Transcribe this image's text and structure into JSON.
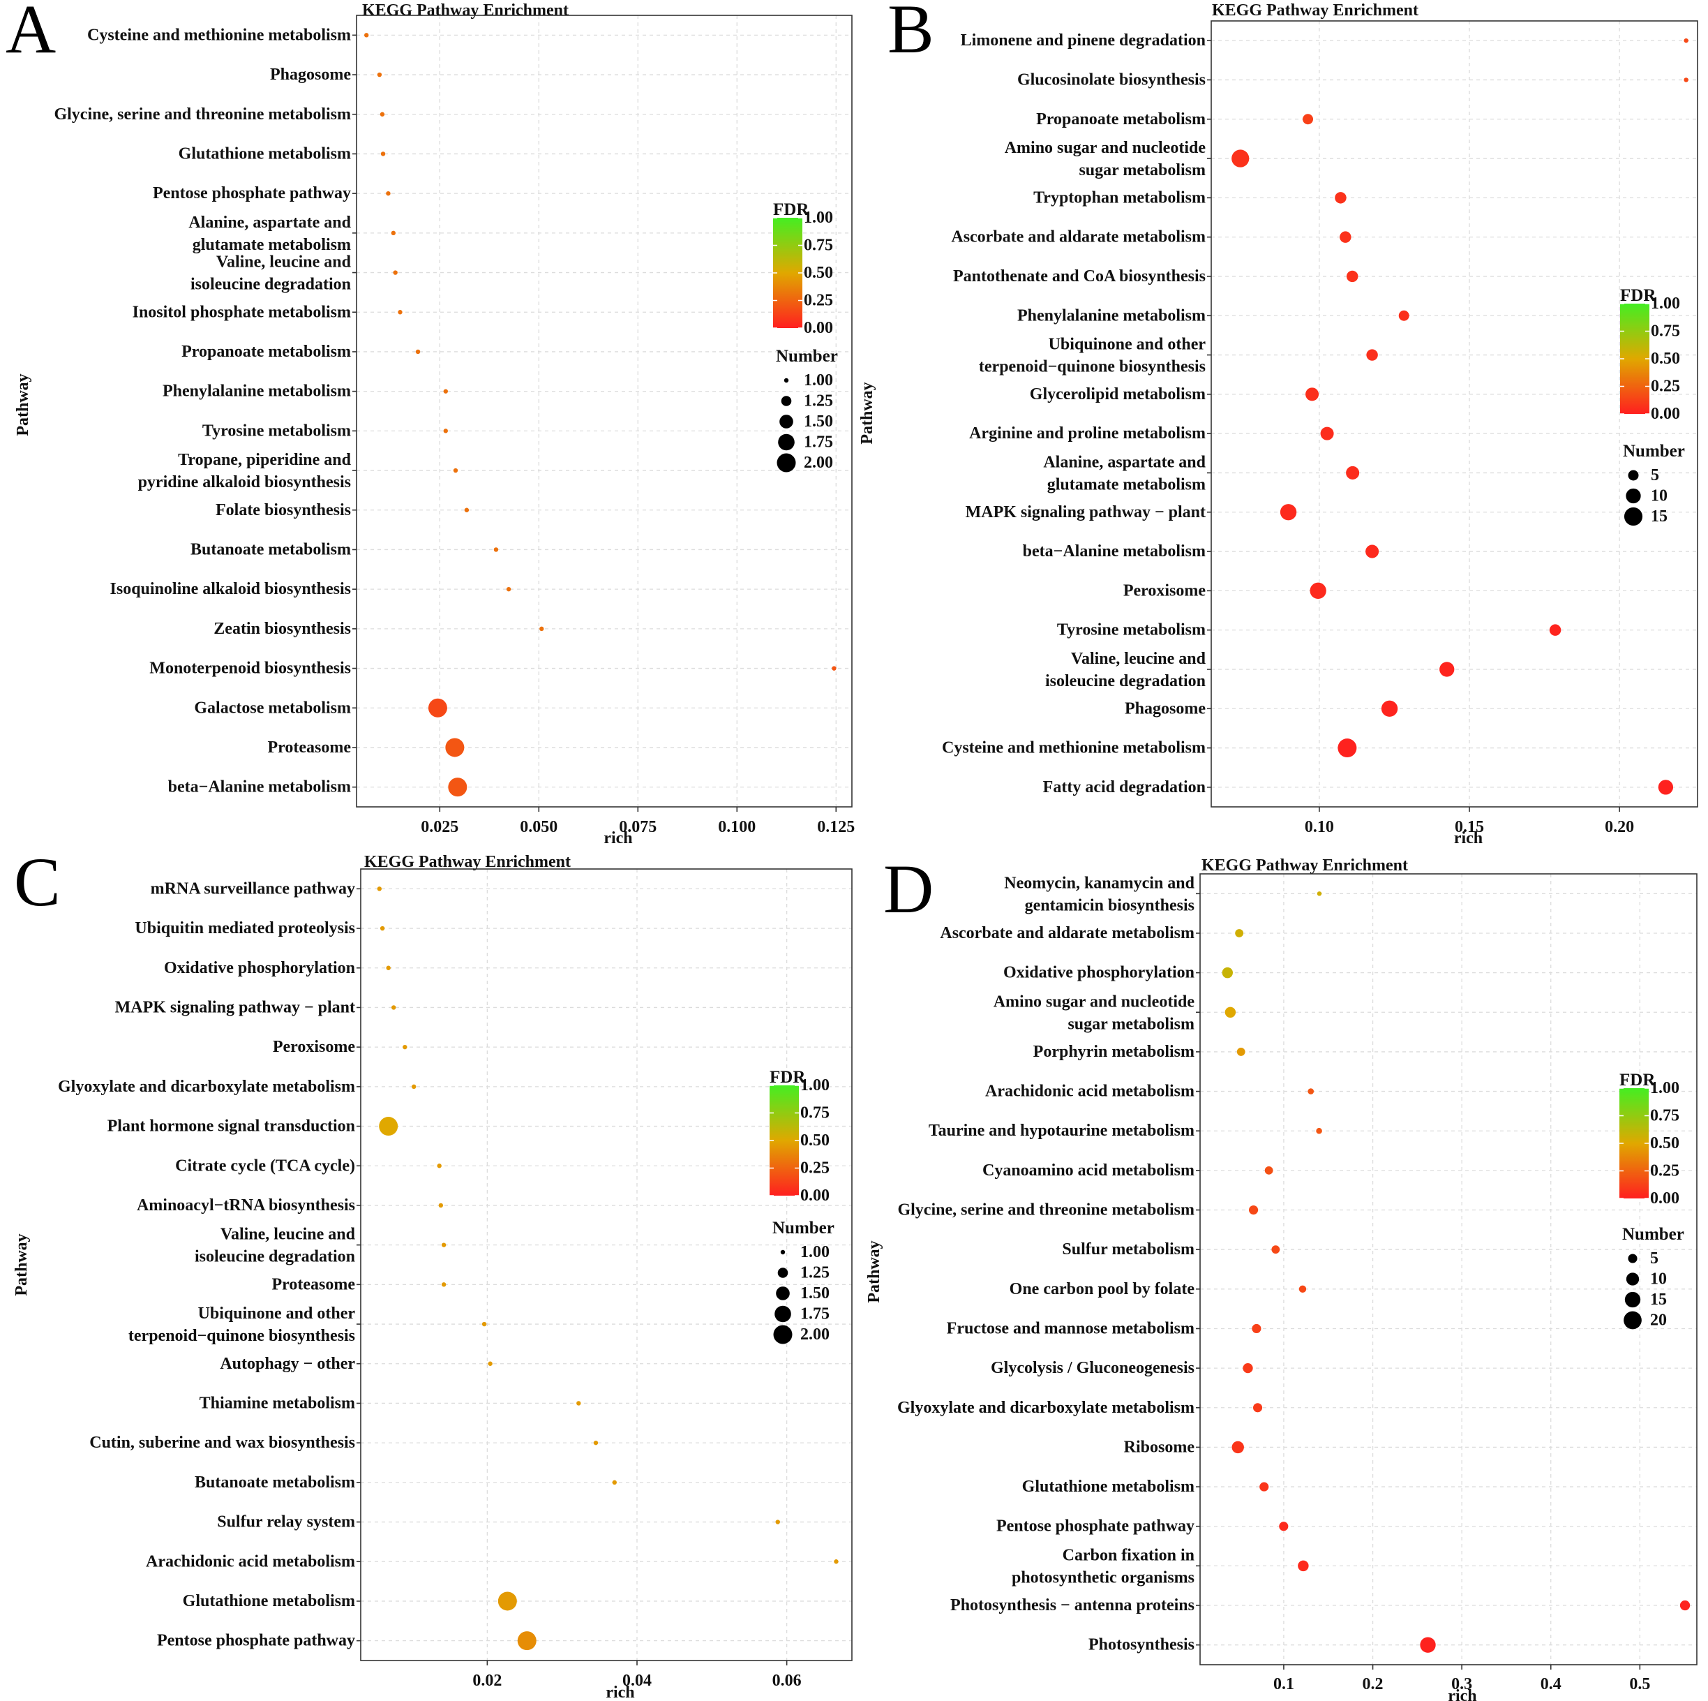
{
  "x_axis_label": "rich",
  "y_axis_label": "Pathway",
  "legend": {
    "color_title": "FDR",
    "size_title": "Number",
    "color_ticks": [
      "1.00",
      "0.75",
      "0.50",
      "0.25",
      "0.00"
    ],
    "colors": {
      "high": "#44ee22",
      "mid": "#e0a800",
      "low": "#ff1f1f"
    }
  },
  "chart_data": [
    {
      "panel": "A",
      "type": "scatter",
      "title": "KEGG Pathway Enrichment",
      "xlabel": "rich",
      "ylabel": "Pathway",
      "xlim": [
        0.004,
        0.129
      ],
      "x_ticks": [
        0.025,
        0.05,
        0.075,
        0.1,
        0.125
      ],
      "x_tick_labels": [
        "0.025",
        "0.050",
        "0.075",
        "0.100",
        "0.125"
      ],
      "size_legend": [
        "1.00",
        "1.25",
        "1.50",
        "1.75",
        "2.00"
      ],
      "size_values": [
        1,
        1.25,
        1.5,
        1.75,
        2
      ],
      "size_range": [
        1,
        2
      ],
      "pathways": [
        {
          "name": "Cysteine and methionine metabolism",
          "rich": 0.0065,
          "number": 1,
          "fdr": 0.3
        },
        {
          "name": "Phagosome",
          "rich": 0.0098,
          "number": 1,
          "fdr": 0.3
        },
        {
          "name": "Glycine, serine and threonine metabolism",
          "rich": 0.0105,
          "number": 1,
          "fdr": 0.3
        },
        {
          "name": "Glutathione metabolism",
          "rich": 0.0107,
          "number": 1,
          "fdr": 0.3
        },
        {
          "name": "Pentose phosphate pathway",
          "rich": 0.012,
          "number": 1,
          "fdr": 0.3
        },
        {
          "name": "Alanine, aspartate and glutamate metabolism",
          "rich": 0.0133,
          "number": 1,
          "fdr": 0.3
        },
        {
          "name": "Valine, leucine and isoleucine degradation",
          "rich": 0.0138,
          "number": 1,
          "fdr": 0.3
        },
        {
          "name": "Inositol phosphate metabolism",
          "rich": 0.015,
          "number": 1,
          "fdr": 0.3
        },
        {
          "name": "Propanoate metabolism",
          "rich": 0.0195,
          "number": 1,
          "fdr": 0.3
        },
        {
          "name": "Phenylalanine metabolism",
          "rich": 0.0265,
          "number": 1,
          "fdr": 0.3
        },
        {
          "name": "Tyrosine metabolism",
          "rich": 0.0265,
          "number": 1,
          "fdr": 0.3
        },
        {
          "name": "Tropane, piperidine and pyridine alkaloid biosynthesis",
          "rich": 0.029,
          "number": 1,
          "fdr": 0.3
        },
        {
          "name": "Folate biosynthesis",
          "rich": 0.0318,
          "number": 1,
          "fdr": 0.3
        },
        {
          "name": "Butanoate metabolism",
          "rich": 0.0392,
          "number": 1,
          "fdr": 0.3
        },
        {
          "name": "Isoquinoline alkaloid biosynthesis",
          "rich": 0.0424,
          "number": 1,
          "fdr": 0.3
        },
        {
          "name": "Zeatin biosynthesis",
          "rich": 0.0507,
          "number": 1,
          "fdr": 0.3
        },
        {
          "name": "Monoterpenoid biosynthesis",
          "rich": 0.1245,
          "number": 1,
          "fdr": 0.2
        },
        {
          "name": "Galactose metabolism",
          "rich": 0.0245,
          "number": 2,
          "fdr": 0.15
        },
        {
          "name": "Proteasome",
          "rich": 0.0288,
          "number": 2,
          "fdr": 0.2
        },
        {
          "name": "beta−Alanine metabolism",
          "rich": 0.0295,
          "number": 2,
          "fdr": 0.2
        }
      ]
    },
    {
      "panel": "B",
      "type": "scatter",
      "title": "KEGG Pathway Enrichment",
      "xlabel": "rich",
      "ylabel": "Pathway",
      "xlim": [
        0.064,
        0.226
      ],
      "x_ticks": [
        0.1,
        0.15,
        0.2
      ],
      "x_tick_labels": [
        "0.10",
        "0.15",
        "0.20"
      ],
      "size_legend": [
        "5",
        "10",
        "15"
      ],
      "size_values": [
        5,
        10,
        15
      ],
      "size_range": [
        1,
        16
      ],
      "pathways": [
        {
          "name": "Limonene and pinene degradation",
          "rich": 0.2222,
          "number": 1,
          "fdr": 0.15
        },
        {
          "name": "Glucosinolate biosynthesis",
          "rich": 0.2222,
          "number": 1,
          "fdr": 0.15
        },
        {
          "name": "Propanoate metabolism",
          "rich": 0.0962,
          "number": 5,
          "fdr": 0.12
        },
        {
          "name": "Amino sugar and nucleotide sugar metabolism",
          "rich": 0.0737,
          "number": 14,
          "fdr": 0.07
        },
        {
          "name": "Tryptophan metabolism",
          "rich": 0.1071,
          "number": 6,
          "fdr": 0.07
        },
        {
          "name": "Ascorbate and aldarate metabolism",
          "rich": 0.1087,
          "number": 6,
          "fdr": 0.07
        },
        {
          "name": "Pantothenate and CoA biosynthesis",
          "rich": 0.111,
          "number": 6,
          "fdr": 0.07
        },
        {
          "name": "Phenylalanine metabolism",
          "rich": 0.1282,
          "number": 5,
          "fdr": 0.06
        },
        {
          "name": "Ubiquinone and other terpenoid−quinone biosynthesis",
          "rich": 0.1176,
          "number": 6,
          "fdr": 0.06
        },
        {
          "name": "Glycerolipid metabolism",
          "rich": 0.0976,
          "number": 8,
          "fdr": 0.06
        },
        {
          "name": "Arginine and proline metabolism",
          "rich": 0.1026,
          "number": 8,
          "fdr": 0.05
        },
        {
          "name": "Alanine, aspartate and glutamate metabolism",
          "rich": 0.1111,
          "number": 8,
          "fdr": 0.05
        },
        {
          "name": "MAPK signaling pathway − plant",
          "rich": 0.0897,
          "number": 12,
          "fdr": 0.04
        },
        {
          "name": "beta−Alanine metabolism",
          "rich": 0.1176,
          "number": 8,
          "fdr": 0.04
        },
        {
          "name": "Peroxisome",
          "rich": 0.0996,
          "number": 12,
          "fdr": 0.04
        },
        {
          "name": "Tyrosine metabolism",
          "rich": 0.1786,
          "number": 6,
          "fdr": 0.02
        },
        {
          "name": "Valine, leucine and isoleucine degradation",
          "rich": 0.1425,
          "number": 10,
          "fdr": 0.02
        },
        {
          "name": "Phagosome",
          "rich": 0.1234,
          "number": 12,
          "fdr": 0.02
        },
        {
          "name": "Cysteine and methionine metabolism",
          "rich": 0.1093,
          "number": 16,
          "fdr": 0.01
        },
        {
          "name": "Fatty acid degradation",
          "rich": 0.2154,
          "number": 10,
          "fdr": 0.01
        }
      ]
    },
    {
      "panel": "C",
      "type": "scatter",
      "title": "KEGG Pathway Enrichment",
      "xlabel": "rich",
      "ylabel": "Pathway",
      "xlim": [
        0.0031,
        0.0687
      ],
      "x_ticks": [
        0.02,
        0.04,
        0.06
      ],
      "x_tick_labels": [
        "0.02",
        "0.04",
        "0.06"
      ],
      "size_legend": [
        "1.00",
        "1.25",
        "1.50",
        "1.75",
        "2.00"
      ],
      "size_values": [
        1,
        1.25,
        1.5,
        1.75,
        2
      ],
      "size_range": [
        1,
        2
      ],
      "pathways": [
        {
          "name": "mRNA surveillance pathway",
          "rich": 0.0056,
          "number": 1,
          "fdr": 0.45
        },
        {
          "name": "Ubiquitin mediated proteolysis",
          "rich": 0.006,
          "number": 1,
          "fdr": 0.45
        },
        {
          "name": "Oxidative phosphorylation",
          "rich": 0.0068,
          "number": 1,
          "fdr": 0.45
        },
        {
          "name": "MAPK signaling pathway − plant",
          "rich": 0.0075,
          "number": 1,
          "fdr": 0.45
        },
        {
          "name": "Peroxisome",
          "rich": 0.009,
          "number": 1,
          "fdr": 0.45
        },
        {
          "name": "Glyoxylate and dicarboxylate metabolism",
          "rich": 0.0102,
          "number": 1,
          "fdr": 0.45
        },
        {
          "name": "Plant hormone signal transduction",
          "rich": 0.0068,
          "number": 2,
          "fdr": 0.5
        },
        {
          "name": "Citrate cycle (TCA cycle)",
          "rich": 0.0136,
          "number": 1,
          "fdr": 0.45
        },
        {
          "name": "Aminoacyl−tRNA biosynthesis",
          "rich": 0.0138,
          "number": 1,
          "fdr": 0.45
        },
        {
          "name": "Valine, leucine and isoleucine degradation",
          "rich": 0.0142,
          "number": 1,
          "fdr": 0.45
        },
        {
          "name": "Proteasome",
          "rich": 0.0142,
          "number": 1,
          "fdr": 0.45
        },
        {
          "name": "Ubiquinone and other terpenoid−quinone biosynthesis",
          "rich": 0.0196,
          "number": 1,
          "fdr": 0.45
        },
        {
          "name": "Autophagy − other",
          "rich": 0.0204,
          "number": 1,
          "fdr": 0.45
        },
        {
          "name": "Thiamine metabolism",
          "rich": 0.0322,
          "number": 1,
          "fdr": 0.45
        },
        {
          "name": "Cutin, suberine and wax biosynthesis",
          "rich": 0.0345,
          "number": 1,
          "fdr": 0.45
        },
        {
          "name": "Butanoate metabolism",
          "rich": 0.037,
          "number": 1,
          "fdr": 0.45
        },
        {
          "name": "Sulfur relay system",
          "rich": 0.0588,
          "number": 1,
          "fdr": 0.45
        },
        {
          "name": "Arachidonic acid metabolism",
          "rich": 0.0666,
          "number": 1,
          "fdr": 0.45
        },
        {
          "name": "Glutathione metabolism",
          "rich": 0.0227,
          "number": 2,
          "fdr": 0.45
        },
        {
          "name": "Pentose phosphate pathway",
          "rich": 0.0253,
          "number": 2,
          "fdr": 0.4
        }
      ]
    },
    {
      "panel": "D",
      "type": "scatter",
      "title": "KEGG Pathway Enrichment",
      "xlabel": "rich",
      "ylabel": "Pathway",
      "xlim": [
        0.006,
        0.564
      ],
      "x_ticks": [
        0.1,
        0.2,
        0.3,
        0.4,
        0.5
      ],
      "x_tick_labels": [
        "0.1",
        "0.2",
        "0.3",
        "0.4",
        "0.5"
      ],
      "size_legend": [
        "5",
        "10",
        "15",
        "20"
      ],
      "size_values": [
        5,
        10,
        15,
        20
      ],
      "size_range": [
        1,
        22
      ],
      "pathways": [
        {
          "name": "Neomycin, kanamycin and gentamicin biosynthesis",
          "rich": 0.14,
          "number": 1,
          "fdr": 0.55
        },
        {
          "name": "Ascorbate and aldarate metabolism",
          "rich": 0.05,
          "number": 4,
          "fdr": 0.55
        },
        {
          "name": "Oxidative phosphorylation",
          "rich": 0.0368,
          "number": 7,
          "fdr": 0.58
        },
        {
          "name": "Amino sugar and nucleotide sugar metabolism",
          "rich": 0.04,
          "number": 7,
          "fdr": 0.5
        },
        {
          "name": "Porphyrin metabolism",
          "rich": 0.052,
          "number": 4,
          "fdr": 0.45
        },
        {
          "name": "Arachidonic acid metabolism",
          "rich": 0.1304,
          "number": 2,
          "fdr": 0.2
        },
        {
          "name": "Taurine and hypotaurine metabolism",
          "rich": 0.1397,
          "number": 2,
          "fdr": 0.2
        },
        {
          "name": "Cyanoamino acid metabolism",
          "rich": 0.0833,
          "number": 4,
          "fdr": 0.18
        },
        {
          "name": "Glycine, serine and threonine metabolism",
          "rich": 0.066,
          "number": 5,
          "fdr": 0.15
        },
        {
          "name": "Sulfur metabolism",
          "rich": 0.0909,
          "number": 4,
          "fdr": 0.15
        },
        {
          "name": "One carbon pool by folate",
          "rich": 0.1212,
          "number": 3,
          "fdr": 0.15
        },
        {
          "name": "Fructose and mannose metabolism",
          "rich": 0.0694,
          "number": 5,
          "fdr": 0.12
        },
        {
          "name": "Glycolysis / Gluconeogenesis",
          "rich": 0.0597,
          "number": 6,
          "fdr": 0.1
        },
        {
          "name": "Glyoxylate and dicarboxylate metabolism",
          "rich": 0.0707,
          "number": 5,
          "fdr": 0.1
        },
        {
          "name": "Ribosome",
          "rich": 0.0485,
          "number": 9,
          "fdr": 0.08
        },
        {
          "name": "Glutathione metabolism",
          "rich": 0.0779,
          "number": 5,
          "fdr": 0.08
        },
        {
          "name": "Pentose phosphate pathway",
          "rich": 0.0999,
          "number": 5,
          "fdr": 0.04
        },
        {
          "name": "Carbon fixation in photosynthetic organisms",
          "rich": 0.1219,
          "number": 7,
          "fdr": 0.04
        },
        {
          "name": "Photosynthesis − antenna proteins",
          "rich": 0.5507,
          "number": 6,
          "fdr": 0.02
        },
        {
          "name": "Photosynthesis",
          "rich": 0.2619,
          "number": 15,
          "fdr": 0.01
        }
      ]
    }
  ]
}
